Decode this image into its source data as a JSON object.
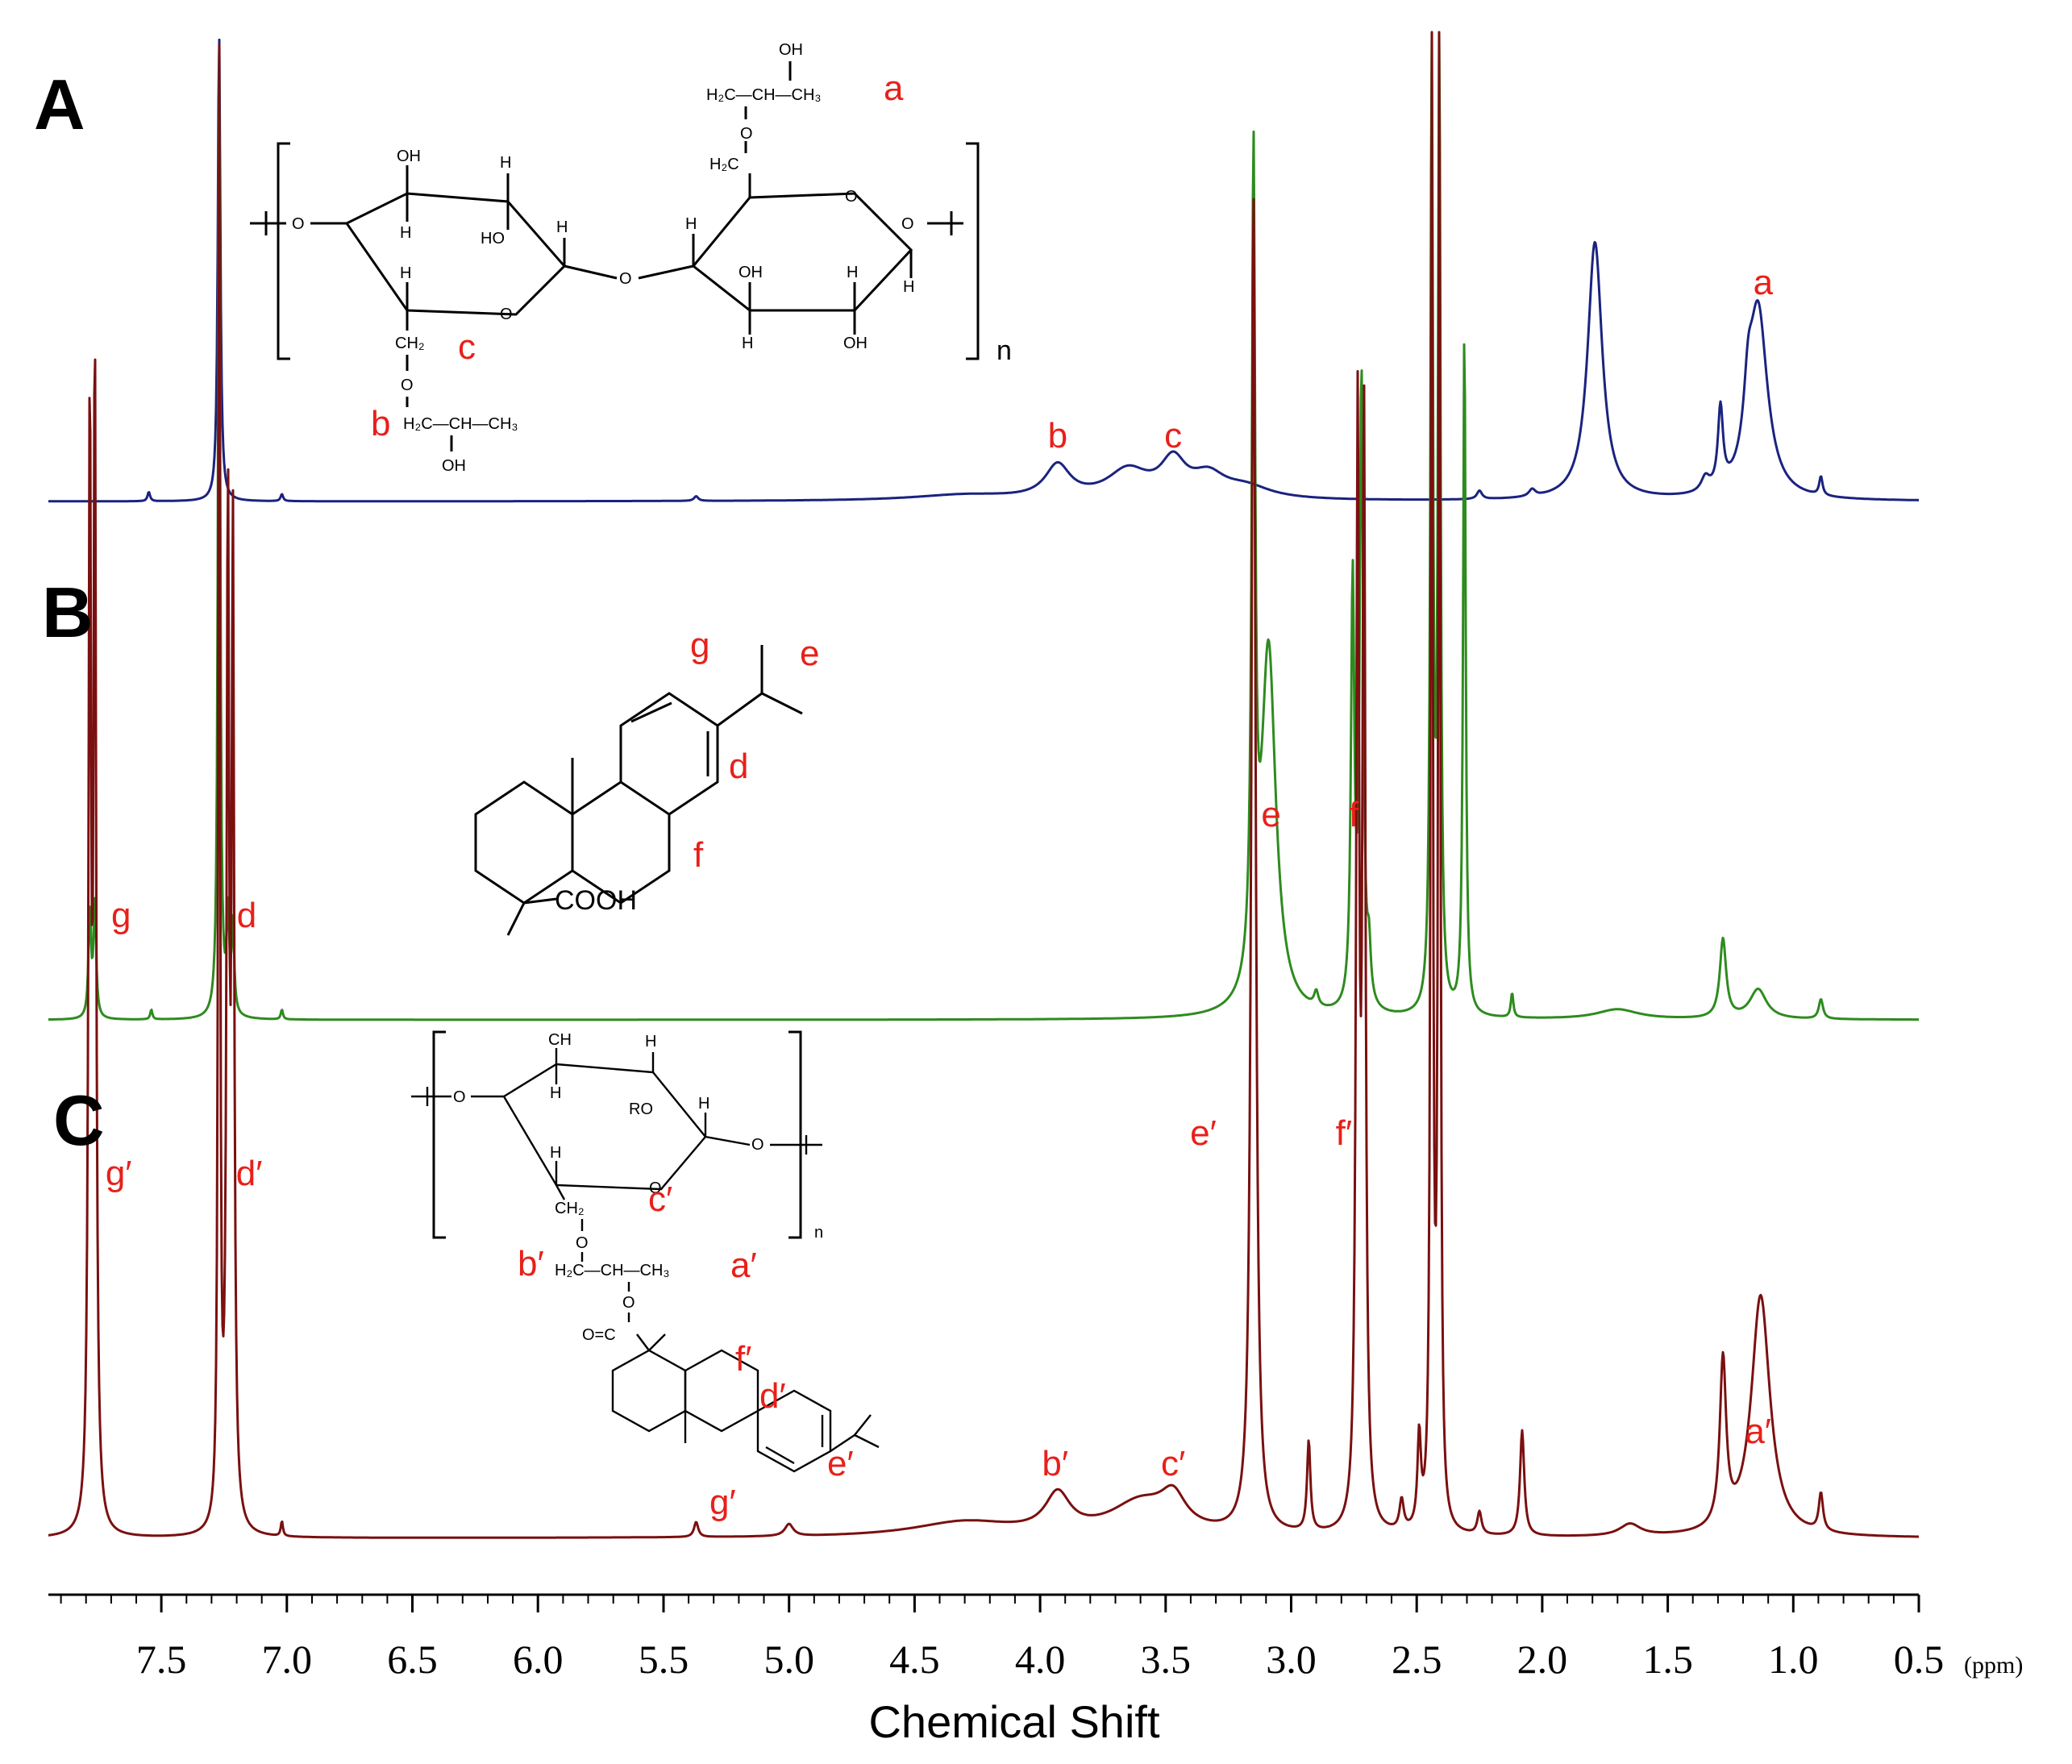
{
  "chart_data": {
    "type": "line",
    "title": "",
    "xlabel": "Chemical Shift",
    "x_unit": "(ppm)",
    "x_reversed": true,
    "xlim": [
      7.95,
      0.5
    ],
    "ticks": [
      7.5,
      7.0,
      6.5,
      6.0,
      5.5,
      5.0,
      4.5,
      4.0,
      3.5,
      3.0,
      2.5,
      2.0,
      1.5,
      1.0,
      0.5
    ],
    "tick_labels": [
      "7.5",
      "7.0",
      "6.5",
      "6.0",
      "5.5",
      "5.0",
      "4.5",
      "4.0",
      "3.5",
      "3.0",
      "2.5",
      "2.0",
      "1.5",
      "1.0",
      "0.5"
    ],
    "grid": false,
    "series": [
      {
        "name": "A",
        "color": "#1a237e",
        "peaks": [
          {
            "ppm": 7.27,
            "height": 1.0,
            "width": 0.006
          },
          {
            "ppm": 7.55,
            "height": 0.02,
            "width": 0.006
          },
          {
            "ppm": 7.02,
            "height": 0.015,
            "width": 0.006
          },
          {
            "ppm": 5.37,
            "height": 0.01,
            "width": 0.01
          },
          {
            "ppm": 4.3,
            "height": 0.012,
            "width": 0.25
          },
          {
            "ppm": 3.93,
            "height": 0.07,
            "width": 0.06
          },
          {
            "ppm": 3.65,
            "height": 0.06,
            "width": 0.1
          },
          {
            "ppm": 3.47,
            "height": 0.075,
            "width": 0.06
          },
          {
            "ppm": 3.33,
            "height": 0.045,
            "width": 0.08
          },
          {
            "ppm": 3.18,
            "height": 0.025,
            "width": 0.12
          },
          {
            "ppm": 2.25,
            "height": 0.018,
            "width": 0.012
          },
          {
            "ppm": 2.04,
            "height": 0.015,
            "width": 0.015
          },
          {
            "ppm": 1.79,
            "height": 0.55,
            "width": 0.035
          },
          {
            "ppm": 1.35,
            "height": 0.03,
            "width": 0.02
          },
          {
            "ppm": 1.29,
            "height": 0.17,
            "width": 0.012
          },
          {
            "ppm": 1.18,
            "height": 0.12,
            "width": 0.02
          },
          {
            "ppm": 1.14,
            "height": 0.4,
            "width": 0.045
          },
          {
            "ppm": 0.89,
            "height": 0.04,
            "width": 0.008
          }
        ],
        "labels": [
          {
            "text": "b",
            "ppm": 3.93
          },
          {
            "text": "c",
            "ppm": 3.47
          },
          {
            "text": "a",
            "ppm": 1.12
          }
        ]
      },
      {
        "name": "B",
        "color": "#2e8b1f",
        "peaks": [
          {
            "ppm": 7.27,
            "height": 1.0,
            "width": 0.005
          },
          {
            "ppm": 7.785,
            "height": 0.11,
            "width": 0.006
          },
          {
            "ppm": 7.765,
            "height": 0.12,
            "width": 0.006
          },
          {
            "ppm": 7.235,
            "height": 0.1,
            "width": 0.006
          },
          {
            "ppm": 7.215,
            "height": 0.09,
            "width": 0.006
          },
          {
            "ppm": 7.54,
            "height": 0.01,
            "width": 0.005
          },
          {
            "ppm": 7.02,
            "height": 0.01,
            "width": 0.005
          },
          {
            "ppm": 3.15,
            "height": 0.81,
            "width": 0.008
          },
          {
            "ppm": 3.09,
            "height": 0.37,
            "width": 0.035
          },
          {
            "ppm": 2.9,
            "height": 0.015,
            "width": 0.01
          },
          {
            "ppm": 2.755,
            "height": 0.43,
            "width": 0.008
          },
          {
            "ppm": 2.72,
            "height": 0.64,
            "width": 0.008
          },
          {
            "ppm": 2.69,
            "height": 0.05,
            "width": 0.008
          },
          {
            "ppm": 2.44,
            "height": 1.0,
            "width": 0.006
          },
          {
            "ppm": 2.41,
            "height": 1.0,
            "width": 0.006
          },
          {
            "ppm": 2.31,
            "height": 0.7,
            "width": 0.006
          },
          {
            "ppm": 2.12,
            "height": 0.025,
            "width": 0.006
          },
          {
            "ppm": 1.7,
            "height": 0.01,
            "width": 0.1
          },
          {
            "ppm": 1.28,
            "height": 0.08,
            "width": 0.015
          },
          {
            "ppm": 1.14,
            "height": 0.03,
            "width": 0.04
          },
          {
            "ppm": 0.89,
            "height": 0.02,
            "width": 0.01
          }
        ],
        "labels": [
          {
            "text": "g",
            "ppm": 7.66
          },
          {
            "text": "d",
            "ppm": 7.16
          },
          {
            "text": "e",
            "ppm": 3.08
          },
          {
            "text": "f",
            "ppm": 2.75
          }
        ]
      },
      {
        "name": "C",
        "color": "#7a1010",
        "peaks": [
          {
            "ppm": 7.27,
            "height": 1.0,
            "width": 0.004
          },
          {
            "ppm": 7.785,
            "height": 0.73,
            "width": 0.006
          },
          {
            "ppm": 7.765,
            "height": 0.76,
            "width": 0.006
          },
          {
            "ppm": 7.235,
            "height": 0.66,
            "width": 0.006
          },
          {
            "ppm": 7.215,
            "height": 0.64,
            "width": 0.006
          },
          {
            "ppm": 7.02,
            "height": 0.01,
            "width": 0.005
          },
          {
            "ppm": 5.37,
            "height": 0.01,
            "width": 0.01
          },
          {
            "ppm": 5.0,
            "height": 0.008,
            "width": 0.02
          },
          {
            "ppm": 4.3,
            "height": 0.01,
            "width": 0.25
          },
          {
            "ppm": 3.93,
            "height": 0.025,
            "width": 0.06
          },
          {
            "ppm": 3.6,
            "height": 0.022,
            "width": 0.15
          },
          {
            "ppm": 3.47,
            "height": 0.02,
            "width": 0.06
          },
          {
            "ppm": 3.15,
            "height": 0.89,
            "width": 0.01
          },
          {
            "ppm": 2.93,
            "height": 0.06,
            "width": 0.008
          },
          {
            "ppm": 2.735,
            "height": 0.72,
            "width": 0.007
          },
          {
            "ppm": 2.71,
            "height": 0.72,
            "width": 0.007
          },
          {
            "ppm": 2.56,
            "height": 0.02,
            "width": 0.01
          },
          {
            "ppm": 2.49,
            "height": 0.06,
            "width": 0.008
          },
          {
            "ppm": 2.44,
            "height": 1.0,
            "width": 0.005
          },
          {
            "ppm": 2.41,
            "height": 1.0,
            "width": 0.005
          },
          {
            "ppm": 2.25,
            "height": 0.015,
            "width": 0.01
          },
          {
            "ppm": 2.08,
            "height": 0.07,
            "width": 0.01
          },
          {
            "ppm": 1.65,
            "height": 0.008,
            "width": 0.05
          },
          {
            "ppm": 1.28,
            "height": 0.11,
            "width": 0.015
          },
          {
            "ppm": 1.13,
            "height": 0.16,
            "width": 0.045
          },
          {
            "ppm": 0.89,
            "height": 0.025,
            "width": 0.01
          }
        ],
        "labels": [
          {
            "text": "g′",
            "ppm": 7.67
          },
          {
            "text": "d′",
            "ppm": 7.15
          },
          {
            "text": "b′",
            "ppm": 3.94
          },
          {
            "text": "c′",
            "ppm": 3.47
          },
          {
            "text": "e′",
            "ppm": 3.35
          },
          {
            "text": "f′",
            "ppm": 2.79
          },
          {
            "text": "a′",
            "ppm": 1.14
          }
        ]
      }
    ]
  },
  "panels": [
    "A",
    "B",
    "C"
  ],
  "structures": {
    "a": {
      "oh_top": "OH",
      "side_chain_top": "H₂C—CH—CH₃",
      "label_a": "a",
      "o_top": "O",
      "h2c_top": "H₂C",
      "ring1": [
        "O",
        "OH",
        "H",
        "H",
        "HO",
        "H",
        "H",
        "O"
      ],
      "ring2": [
        "OH",
        "H",
        "H",
        "OH",
        "O",
        "H",
        "O"
      ],
      "ch2": "CH₂",
      "label_c": "c",
      "o_bottom": "O",
      "label_b": "b",
      "side_chain_bottom": "H₂C—CH—CH₃",
      "oh_bottom": "OH",
      "n": "n"
    },
    "b": {
      "label_g": "g",
      "label_e": "e",
      "label_d": "d",
      "label_f": "f",
      "cooh": "COOH"
    },
    "c": {
      "ring": [
        "O",
        "CH",
        "H",
        "H",
        "RO",
        "H",
        "H",
        "O",
        "O"
      ],
      "ch2": "CH₂",
      "label_c": "c′",
      "o1": "O",
      "label_b": "b′",
      "side_chain": "H₂C—CH—CH₃",
      "label_a": "a′",
      "o2": "O",
      "ester": "O=C",
      "label_f": "f′",
      "label_d": "d′",
      "label_e": "e′",
      "label_g": "g′",
      "n": "n"
    }
  },
  "colors": {
    "label_red": "#e8201a",
    "axis": "#000000"
  }
}
